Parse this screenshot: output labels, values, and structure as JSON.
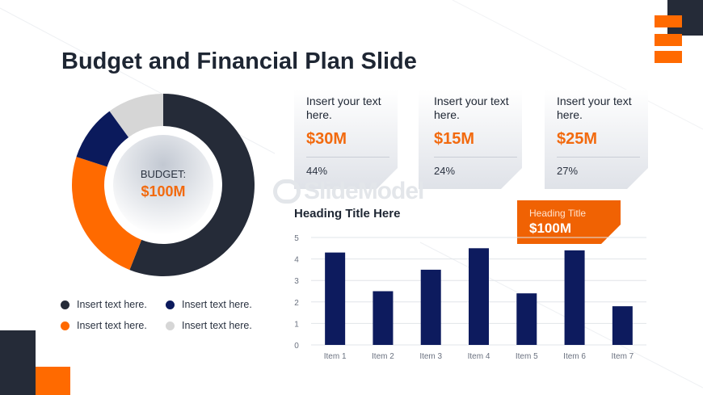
{
  "slide": {
    "title": "Budget and Financial Plan Slide"
  },
  "colors": {
    "navy_dark": "#252b38",
    "orange": "#ff6a00",
    "navy": "#0b1a5c",
    "light_gray": "#d6d6d6",
    "bar": "#0d1b5e"
  },
  "donut": {
    "center_label": "BUDGET:",
    "center_value": "$100M",
    "segments": [
      {
        "color": "#252b38",
        "value": 0.56
      },
      {
        "color": "#ff6a00",
        "value": 0.24
      },
      {
        "color": "#0b1a5c",
        "value": 0.1
      },
      {
        "color": "#d6d6d6",
        "value": 0.1
      }
    ]
  },
  "legend": [
    {
      "color": "#252b38",
      "label": "Insert text here."
    },
    {
      "color": "#0b1a5c",
      "label": "Insert text here."
    },
    {
      "color": "#ff6a00",
      "label": "Insert text here."
    },
    {
      "color": "#d6d6d6",
      "label": "Insert text here."
    }
  ],
  "cards": [
    {
      "text": "Insert your text here.",
      "value": "$30M",
      "percent": "44%"
    },
    {
      "text": "Insert your text here.",
      "value": "$15M",
      "percent": "24%"
    },
    {
      "text": "Insert your text here.",
      "value": "$25M",
      "percent": "27%"
    }
  ],
  "watermark": "SlideModel",
  "callout": {
    "label": "Heading Title",
    "value": "$100M"
  },
  "chart_data": [
    {
      "type": "pie",
      "title": "",
      "categories": [
        "Insert text here.",
        "Insert text here.",
        "Insert text here.",
        "Insert text here."
      ],
      "values": [
        0.56,
        0.24,
        0.1,
        0.1
      ],
      "center_text": "BUDGET: $100M",
      "legend_position": "bottom"
    },
    {
      "type": "bar",
      "title": "Heading Title Here",
      "categories": [
        "Item 1",
        "Item 2",
        "Item 3",
        "Item 4",
        "Item 5",
        "Item 6",
        "Item 7"
      ],
      "values": [
        4.3,
        2.5,
        3.5,
        4.5,
        2.4,
        4.4,
        1.8
      ],
      "xlabel": "",
      "ylabel": "",
      "ylim": [
        0,
        5
      ],
      "yticks": [
        "0",
        "1",
        "2",
        "3",
        "4",
        "5"
      ],
      "grid": true
    }
  ]
}
